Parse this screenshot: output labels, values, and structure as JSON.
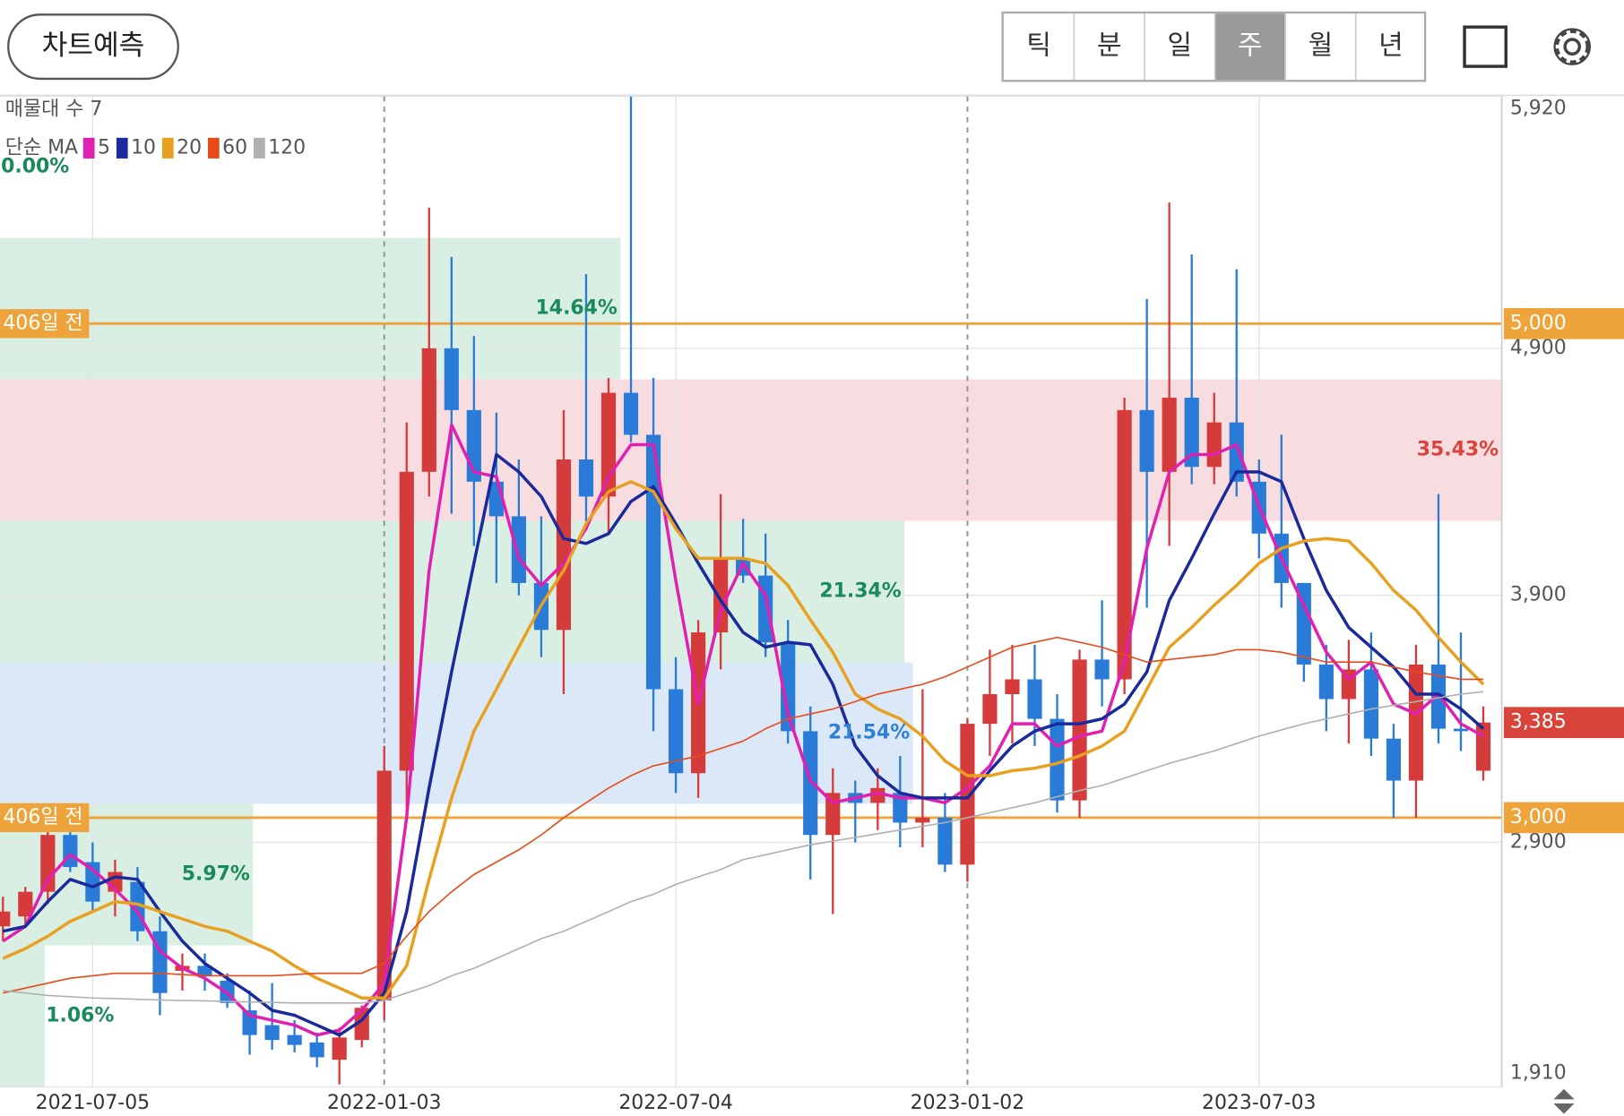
{
  "header": {
    "button": "차트예측",
    "tabs": [
      "틱",
      "분",
      "일",
      "주",
      "월",
      "년"
    ],
    "selected_tab": 3
  },
  "chart_data": {
    "type": "candlestick",
    "categories": [
      null,
      null,
      null,
      null,
      "2021-07-05",
      null,
      null,
      null,
      null,
      null,
      null,
      null,
      null,
      null,
      null,
      null,
      null,
      "2022-01-03",
      null,
      null,
      null,
      null,
      null,
      null,
      null,
      null,
      null,
      null,
      null,
      null,
      "2022-07-04",
      null,
      null,
      null,
      null,
      null,
      null,
      null,
      null,
      null,
      null,
      null,
      null,
      "2023-01-02",
      null,
      null,
      null,
      null,
      null,
      null,
      null,
      null,
      null,
      null,
      null,
      null,
      "2023-07-03",
      null,
      null,
      null,
      null,
      null,
      null,
      null,
      null,
      null,
      null
    ],
    "open": [
      2560,
      2600,
      2700,
      2930,
      2820,
      2700,
      2740,
      2540,
      2380,
      2400,
      2340,
      2220,
      2160,
      2120,
      2090,
      2020,
      2100,
      2260,
      3190,
      4400,
      4900,
      4650,
      4360,
      4220,
      3950,
      3760,
      4450,
      4300,
      4720,
      4550,
      3520,
      3180,
      3750,
      4050,
      3980,
      3710,
      3350,
      2930,
      3100,
      3060,
      3100,
      2980,
      3000,
      2810,
      3380,
      3500,
      3560,
      3400,
      3070,
      3640,
      3560,
      4650,
      4400,
      4700,
      4420,
      4600,
      4360,
      4150,
      3950,
      3620,
      3480,
      3600,
      3320,
      3150,
      3620,
      3360,
      3190
    ],
    "high": [
      2680,
      2720,
      3000,
      3020,
      2900,
      2830,
      2800,
      2600,
      2450,
      2450,
      2370,
      2300,
      2330,
      2180,
      2130,
      2150,
      2240,
      3290,
      4600,
      5470,
      5270,
      4950,
      4640,
      4450,
      4220,
      4650,
      5200,
      4780,
      5920,
      4780,
      3650,
      3800,
      4310,
      4210,
      4150,
      3800,
      3450,
      3200,
      3150,
      3200,
      3250,
      3520,
      3100,
      3400,
      3680,
      3700,
      3700,
      3500,
      3680,
      3880,
      4700,
      5100,
      5490,
      5280,
      4720,
      5220,
      4450,
      4550,
      3950,
      3700,
      3720,
      3750,
      3380,
      3700,
      4310,
      3750,
      3450
    ],
    "low": [
      2500,
      2560,
      2650,
      2780,
      2620,
      2600,
      2500,
      2200,
      2300,
      2300,
      2230,
      2040,
      2060,
      2050,
      1990,
      1920,
      2070,
      2180,
      3000,
      4300,
      4230,
      4100,
      3950,
      3900,
      3650,
      3500,
      4200,
      4150,
      4520,
      3350,
      3100,
      3080,
      3600,
      3950,
      3650,
      3300,
      2750,
      2610,
      2900,
      2950,
      2880,
      2880,
      2780,
      2740,
      3250,
      3300,
      3290,
      3020,
      3000,
      3450,
      3500,
      3850,
      4100,
      4350,
      4350,
      4300,
      4050,
      3850,
      3550,
      3350,
      3300,
      3250,
      3000,
      3000,
      3300,
      3270,
      3150
    ],
    "close": [
      2620,
      2700,
      2930,
      2800,
      2660,
      2780,
      2540,
      2290,
      2400,
      2360,
      2250,
      2120,
      2100,
      2080,
      2030,
      2110,
      2230,
      3190,
      4400,
      4900,
      4650,
      4360,
      4220,
      3950,
      3760,
      4450,
      4300,
      4720,
      4550,
      3520,
      3180,
      3750,
      4050,
      3980,
      3710,
      3350,
      2930,
      3100,
      3060,
      3120,
      2980,
      3000,
      2810,
      3380,
      3500,
      3560,
      3400,
      3070,
      3640,
      3560,
      4650,
      4400,
      4700,
      4420,
      4600,
      4360,
      4150,
      3950,
      3620,
      3480,
      3600,
      3320,
      3150,
      3620,
      3360,
      3350,
      3385
    ],
    "up_color": "#d63b3b",
    "down_color": "#2a7bd8",
    "ma_label": "단순 MA",
    "series": [
      {
        "name": "5",
        "color": "#e020b0",
        "values": [
          2500,
          2560,
          2750,
          2850,
          2790,
          2710,
          2620,
          2460,
          2390,
          2350,
          2290,
          2200,
          2180,
          2160,
          2120,
          2140,
          2220,
          2330,
          3000,
          4000,
          4590,
          4400,
          4380,
          4050,
          3940,
          4030,
          4170,
          4380,
          4510,
          4510,
          3960,
          3460,
          3840,
          4030,
          3900,
          3420,
          3150,
          3060,
          3080,
          3100,
          3080,
          3080,
          3060,
          3120,
          3210,
          3380,
          3380,
          3290,
          3330,
          3350,
          3630,
          4090,
          4400,
          4470,
          4470,
          4510,
          4260,
          4050,
          3860,
          3670,
          3560,
          3630,
          3460,
          3420,
          3500,
          3380,
          3330
        ]
      },
      {
        "name": "10",
        "color": "#1a2a9c",
        "values": [
          2540,
          2560,
          2660,
          2750,
          2720,
          2760,
          2750,
          2620,
          2500,
          2410,
          2350,
          2290,
          2220,
          2200,
          2160,
          2120,
          2180,
          2290,
          2620,
          3120,
          3590,
          4030,
          4470,
          4400,
          4300,
          4130,
          4110,
          4150,
          4280,
          4340,
          4190,
          4030,
          3880,
          3750,
          3690,
          3710,
          3700,
          3540,
          3290,
          3170,
          3100,
          3080,
          3080,
          3080,
          3190,
          3290,
          3350,
          3380,
          3380,
          3400,
          3460,
          3590,
          3880,
          4050,
          4230,
          4400,
          4400,
          4360,
          4130,
          3920,
          3770,
          3690,
          3610,
          3500,
          3500,
          3440,
          3360
        ]
      },
      {
        "name": "20",
        "color": "#e8a020",
        "values": [
          2430,
          2470,
          2520,
          2580,
          2620,
          2660,
          2650,
          2620,
          2590,
          2560,
          2540,
          2500,
          2460,
          2400,
          2350,
          2310,
          2270,
          2270,
          2400,
          2750,
          3080,
          3350,
          3520,
          3690,
          3860,
          4000,
          4190,
          4320,
          4360,
          4320,
          4170,
          4050,
          4050,
          4050,
          4030,
          3940,
          3800,
          3670,
          3500,
          3440,
          3400,
          3330,
          3230,
          3170,
          3170,
          3190,
          3200,
          3220,
          3250,
          3290,
          3350,
          3520,
          3690,
          3770,
          3860,
          3940,
          4030,
          4090,
          4120,
          4130,
          4120,
          4030,
          3920,
          3840,
          3730,
          3630,
          3540
        ]
      },
      {
        "name": "60",
        "color": "#e84a1a",
        "values": [
          2290,
          2310,
          2330,
          2350,
          2360,
          2370,
          2370,
          2370,
          2365,
          2360,
          2360,
          2360,
          2360,
          2365,
          2370,
          2370,
          2370,
          2410,
          2520,
          2620,
          2700,
          2770,
          2820,
          2870,
          2930,
          3000,
          3060,
          3120,
          3170,
          3210,
          3230,
          3250,
          3280,
          3310,
          3360,
          3400,
          3420,
          3440,
          3470,
          3500,
          3520,
          3540,
          3570,
          3610,
          3650,
          3690,
          3710,
          3730,
          3710,
          3690,
          3660,
          3630,
          3640,
          3650,
          3660,
          3680,
          3680,
          3670,
          3650,
          3630,
          3630,
          3630,
          3610,
          3590,
          3575,
          3560,
          3560
        ]
      },
      {
        "name": "120",
        "color": "#b0b0b0",
        "values": [
          2300,
          2290,
          2280,
          2275,
          2270,
          2268,
          2265,
          2262,
          2260,
          2258,
          2256,
          2254,
          2252,
          2250,
          2250,
          2250,
          2250,
          2260,
          2290,
          2320,
          2360,
          2390,
          2430,
          2470,
          2510,
          2540,
          2580,
          2620,
          2660,
          2690,
          2730,
          2760,
          2790,
          2830,
          2850,
          2870,
          2890,
          2905,
          2920,
          2935,
          2950,
          2965,
          2980,
          3000,
          3020,
          3040,
          3060,
          3085,
          3110,
          3130,
          3160,
          3190,
          3220,
          3245,
          3270,
          3300,
          3330,
          3355,
          3380,
          3400,
          3420,
          3440,
          3455,
          3470,
          3485,
          3500,
          3510
        ]
      }
    ],
    "volume_profile": {
      "label": "매물대 수",
      "count": 7,
      "percents": [
        1.06,
        5.97,
        21.54,
        21.34,
        35.43,
        14.64,
        0.0
      ],
      "value_labels": [
        "1.06%",
        "5.97%",
        "21.54%",
        "21.34%",
        "35.43%",
        "14.64%",
        "0.00%"
      ],
      "colors": [
        "#d9efe3",
        "#d9efe3",
        "#dae8f7",
        "#d9efe3",
        "#f8dde0",
        "#d9efe3",
        "#d9efe3"
      ],
      "label_colors": [
        "#1a8a5a",
        "#1a8a5a",
        "#2e7fd6",
        "#1a8a5a",
        "#d9443a",
        "#1a8a5a",
        "#1a8a5a"
      ]
    },
    "reference_lines": [
      {
        "label": "406일 전",
        "value": 5000,
        "value_label": "5,000",
        "color": "#eea43a"
      },
      {
        "label": "406일 전",
        "value": 3000,
        "value_label": "3,000",
        "color": "#eea43a"
      }
    ],
    "current_price": {
      "value": 3385,
      "label": "3,385",
      "color": "#d9443a"
    },
    "ylim": [
      1910,
      5920
    ],
    "yticks": [
      {
        "value": 1910,
        "label": "1,910"
      },
      {
        "value": 2900,
        "label": "2,900"
      },
      {
        "value": 3900,
        "label": "3,900"
      },
      {
        "value": 4900,
        "label": "4,900"
      },
      {
        "value": 5920,
        "label": "5,920"
      }
    ],
    "grid": true
  }
}
